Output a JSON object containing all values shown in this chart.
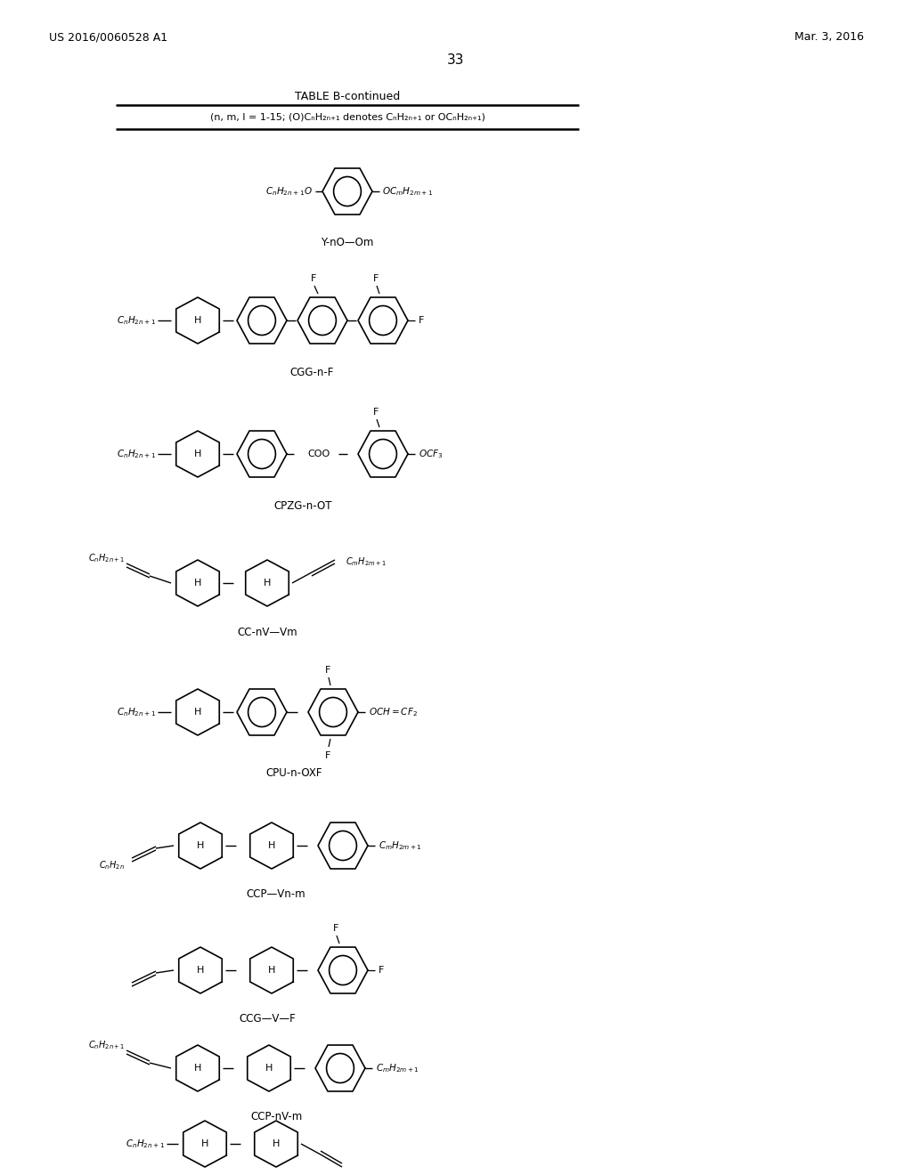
{
  "page_number": "33",
  "patent_number": "US 2016/0060528 A1",
  "patent_date": "Mar. 3, 2016",
  "table_title": "TABLE B-continued",
  "table_subtitle": "(n, m, l = 1-15; (O)CₙH₂ₙ₊₁ denotes CₙH₂ₙ₊₁ or OCₙH₂ₙ₊₁)",
  "background_color": "#ffffff"
}
